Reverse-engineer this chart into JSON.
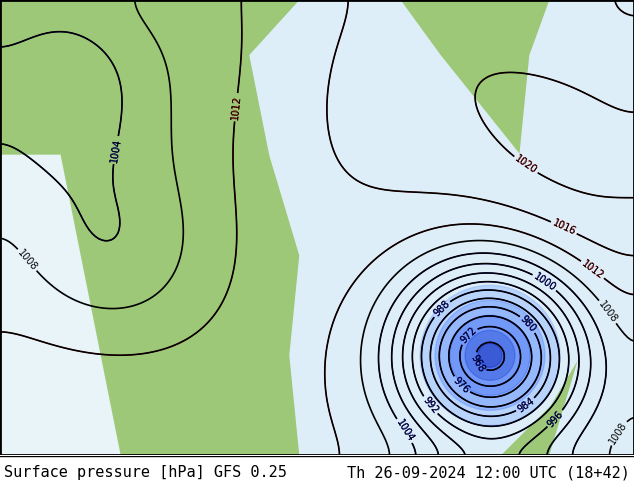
{
  "title_left": "Surface pressure [hPa] GFS 0.25",
  "title_right": "Th 26-09-2024 12:00 UTC (18+42)",
  "bg_color": "#c8e6c9",
  "border_color": "#000000",
  "footer_bg": "#ffffff",
  "footer_fontsize": 11,
  "map_bg": "#b8d4a0"
}
